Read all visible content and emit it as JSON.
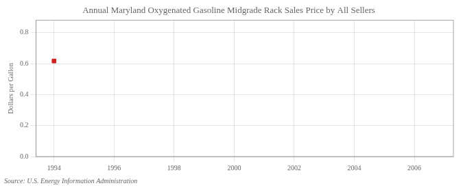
{
  "chart_data": {
    "type": "scatter",
    "title": "Annual Maryland Oxygenated Gasoline Midgrade Rack Sales Price by All Sellers",
    "ylabel": "Dollars per Gallon",
    "annotation": "Source: U.S. Energy Information Administration",
    "x": [
      1994
    ],
    "values": [
      0.617
    ],
    "color": "#cc2222",
    "marker": "square",
    "xlim": [
      1993.4,
      2007.3
    ],
    "xticks": [
      1994,
      1996,
      1998,
      2000,
      2002,
      2004,
      2006
    ],
    "ylim": [
      0.0,
      0.88
    ],
    "yticks": [
      {
        "value": 0.0,
        "label": "0.0"
      },
      0.2,
      0.4,
      0.6,
      0.8
    ],
    "grid": true
  }
}
